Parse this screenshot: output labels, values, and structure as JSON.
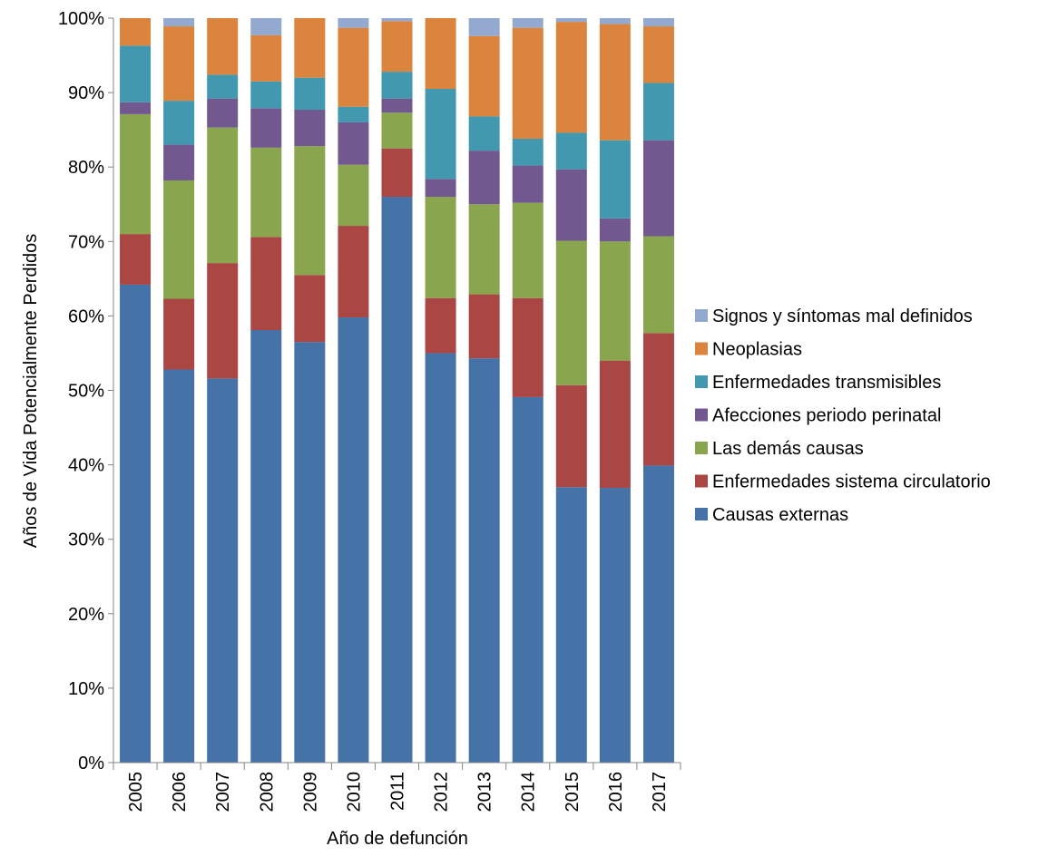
{
  "chart_data": {
    "type": "bar",
    "stacked": true,
    "normalized": true,
    "title": "",
    "xlabel": "Año de defunción",
    "ylabel": "Años de Vida Potencialmente Perdidos",
    "ylim": [
      0,
      100
    ],
    "yticks": [
      "0%",
      "10%",
      "20%",
      "30%",
      "40%",
      "50%",
      "60%",
      "70%",
      "80%",
      "90%",
      "100%"
    ],
    "grid": false,
    "legend_position": "right",
    "categories": [
      "2005",
      "2006",
      "2007",
      "2008",
      "2009",
      "2010",
      "2011",
      "2012",
      "2013",
      "2014",
      "2015",
      "2016",
      "2017"
    ],
    "series": [
      {
        "name": "Causas externas",
        "color": "#4572A7",
        "values": [
          64.2,
          52.8,
          51.6,
          58.1,
          56.5,
          59.8,
          76.0,
          55.0,
          54.3,
          49.1,
          37.0,
          36.9,
          39.9
        ]
      },
      {
        "name": "Enfermedades sistema circulatorio",
        "color": "#AA4643",
        "values": [
          6.8,
          9.5,
          15.5,
          12.5,
          9.0,
          12.3,
          6.5,
          7.4,
          8.6,
          13.3,
          13.7,
          17.1,
          17.8
        ]
      },
      {
        "name": "Las demás causas",
        "color": "#89A54E",
        "values": [
          16.1,
          15.9,
          18.2,
          12.0,
          17.3,
          8.2,
          4.8,
          13.6,
          12.1,
          12.8,
          19.4,
          16.0,
          13.0
        ]
      },
      {
        "name": "Afecciones periodo perinatal",
        "color": "#71588F",
        "values": [
          1.6,
          4.8,
          3.9,
          5.3,
          4.9,
          5.7,
          1.9,
          2.4,
          7.2,
          5.0,
          9.6,
          3.1,
          12.9
        ]
      },
      {
        "name": "Enfermedades transmisibles",
        "color": "#4198AF",
        "values": [
          7.6,
          5.9,
          3.2,
          3.6,
          4.3,
          2.1,
          3.6,
          12.1,
          4.6,
          3.6,
          4.9,
          10.5,
          7.7
        ]
      },
      {
        "name": "Neoplasias",
        "color": "#DB843D",
        "values": [
          3.7,
          10.0,
          7.6,
          6.2,
          8.0,
          10.6,
          6.8,
          9.5,
          10.8,
          14.9,
          14.9,
          15.6,
          7.6
        ]
      },
      {
        "name": "Signos y síntomas mal definidos",
        "color": "#93A9CF",
        "values": [
          0.0,
          1.1,
          0.0,
          2.3,
          0.0,
          1.3,
          0.4,
          0.0,
          2.4,
          1.3,
          0.5,
          0.8,
          1.1
        ]
      }
    ],
    "legend_order": [
      "Signos y síntomas mal definidos",
      "Neoplasias",
      "Enfermedades transmisibles",
      "Afecciones periodo perinatal",
      "Las demás causas",
      "Enfermedades sistema circulatorio",
      "Causas externas"
    ]
  }
}
